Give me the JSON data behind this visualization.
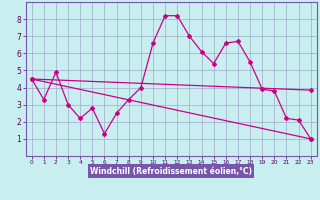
{
  "xlabel": "Windchill (Refroidissement éolien,°C)",
  "bg_color": "#c8eef0",
  "xlabel_bg": "#7755aa",
  "grid_color": "#a0a8cc",
  "line_color": "#cc0088",
  "xlim": [
    -0.5,
    23.5
  ],
  "ylim": [
    0,
    9
  ],
  "xticks": [
    0,
    1,
    2,
    3,
    4,
    5,
    6,
    7,
    8,
    9,
    10,
    11,
    12,
    13,
    14,
    15,
    16,
    17,
    18,
    19,
    20,
    21,
    22,
    23
  ],
  "yticks": [
    1,
    2,
    3,
    4,
    5,
    6,
    7,
    8
  ],
  "line1_x": [
    0,
    1,
    2,
    3,
    4,
    5,
    6,
    7,
    8,
    9,
    10,
    11,
    12,
    13,
    14,
    15,
    16,
    17,
    18,
    19,
    20,
    21,
    22,
    23
  ],
  "line1_y": [
    4.5,
    3.3,
    4.9,
    3.0,
    2.2,
    2.8,
    1.3,
    2.5,
    3.3,
    4.0,
    6.6,
    8.2,
    8.2,
    7.0,
    6.1,
    5.4,
    6.6,
    6.7,
    5.5,
    3.9,
    3.8,
    2.2,
    2.1,
    1.0
  ],
  "line2_x": [
    0,
    23
  ],
  "line2_y": [
    4.5,
    3.85
  ],
  "line3_x": [
    0,
    23
  ],
  "line3_y": [
    4.5,
    1.0
  ]
}
